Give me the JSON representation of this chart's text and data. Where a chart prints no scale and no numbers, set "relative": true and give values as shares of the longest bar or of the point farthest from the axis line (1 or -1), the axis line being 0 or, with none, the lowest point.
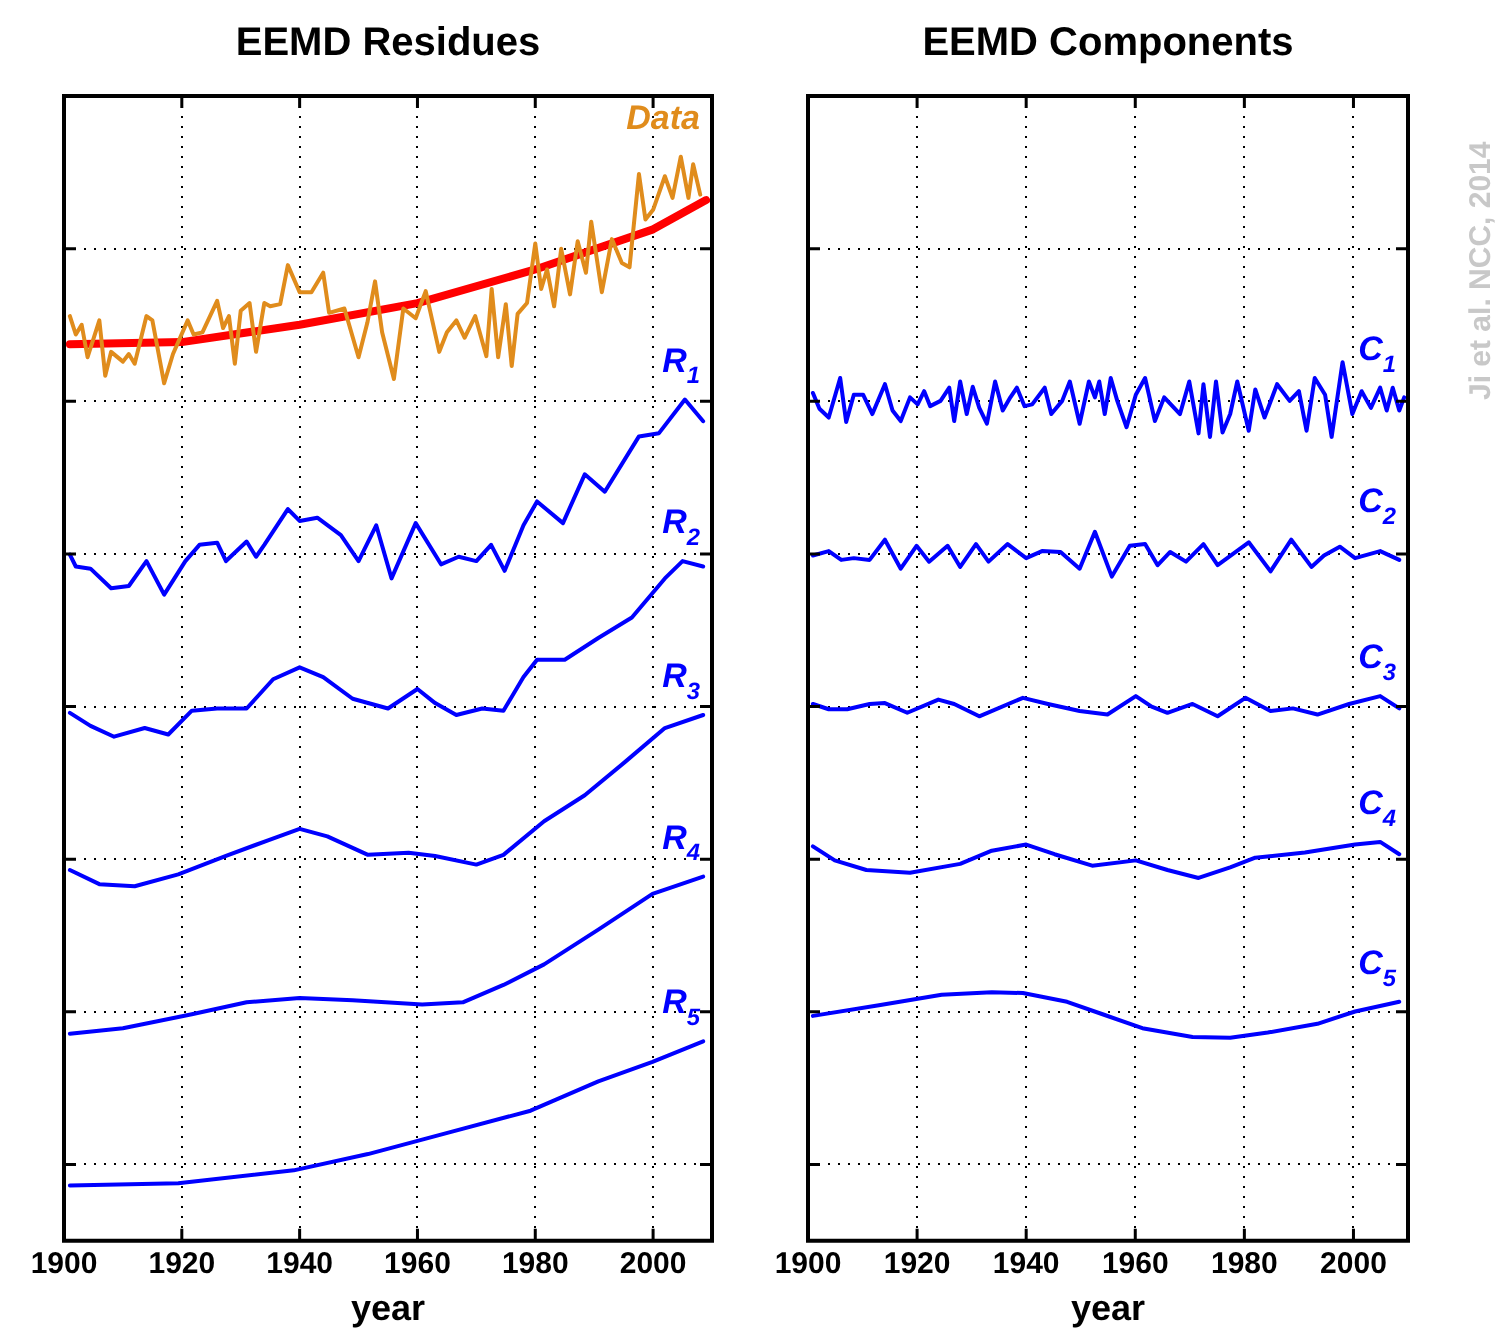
{
  "chart_data": [
    {
      "type": "line",
      "title": "EEMD Residues",
      "xlabel": "year",
      "relative": true,
      "xlim": [
        1900,
        2010
      ],
      "xticks": [
        1900,
        1920,
        1940,
        1960,
        1980,
        2000
      ],
      "grid": true,
      "legend": false,
      "marker": "none",
      "line_style": "solid",
      "series": [
        {
          "name": "Data",
          "color": "#e08c1c",
          "x": [
            1901,
            1902,
            1903,
            1904,
            1906,
            1907,
            1908,
            1910,
            1911,
            1912,
            1914,
            1915,
            1917,
            1918.5,
            1921,
            1922,
            1923.5,
            1926,
            1927,
            1928,
            1929,
            1930,
            1931.5,
            1932.6,
            1934,
            1935,
            1936.7,
            1938,
            1940,
            1942,
            1944,
            1945,
            1947.6,
            1950,
            1951.5,
            1952.8,
            1954,
            1956,
            1957.6,
            1959.7,
            1961.4,
            1963.7,
            1965,
            1966.6,
            1968,
            1969.8,
            1971.7,
            1972.6,
            1973.7,
            1975,
            1976,
            1977,
            1978.6,
            1980,
            1981,
            1982,
            1983.2,
            1984.4,
            1985.9,
            1987.2,
            1988.6,
            1989.5,
            1991.3,
            1993,
            1994.7,
            1996,
            1997.6,
            1998.7,
            2000,
            2002,
            2003.3,
            2004.7,
            2006,
            2006.8,
            2008
          ],
          "values": [
            0.853,
            0.836,
            0.845,
            0.815,
            0.849,
            0.798,
            0.82,
            0.811,
            0.818,
            0.809,
            0.853,
            0.849,
            0.791,
            0.818,
            0.849,
            0.836,
            0.838,
            0.867,
            0.842,
            0.853,
            0.809,
            0.858,
            0.865,
            0.82,
            0.865,
            0.862,
            0.864,
            0.9,
            0.875,
            0.875,
            0.893,
            0.856,
            0.86,
            0.815,
            0.847,
            0.885,
            0.838,
            0.795,
            0.86,
            0.851,
            0.876,
            0.82,
            0.838,
            0.849,
            0.833,
            0.853,
            0.816,
            0.878,
            0.815,
            0.864,
            0.807,
            0.855,
            0.865,
            0.92,
            0.878,
            0.896,
            0.862,
            0.915,
            0.873,
            0.922,
            0.893,
            0.94,
            0.875,
            0.924,
            0.902,
            0.898,
            0.984,
            0.942,
            0.951,
            0.982,
            0.962,
            1.0,
            0.962,
            0.993,
            0.965
          ]
        },
        {
          "color": "#ff0000",
          "x": [
            1901,
            1920,
            1940,
            1960,
            1980,
            2000,
            2009
          ],
          "values": [
            0.827,
            0.829,
            0.845,
            0.865,
            0.896,
            0.933,
            0.96
          ]
        },
        {
          "name": "R$_{1}$",
          "color": "#0000ff",
          "x": [
            1901,
            1902,
            1904.5,
            1908,
            1911,
            1914,
            1917,
            1920.6,
            1923,
            1926,
            1927.5,
            1931,
            1932.6,
            1934,
            1938,
            1940,
            1943,
            1947,
            1950,
            1953,
            1955.6,
            1959.7,
            1964,
            1967,
            1970,
            1972.5,
            1974.8,
            1978,
            1980.3,
            1984.7,
            1988.4,
            1991.8,
            1997.6,
            2001,
            2005.4,
            2008.5
          ],
          "values": [
            0.633,
            0.622,
            0.62,
            0.602,
            0.604,
            0.627,
            0.596,
            0.627,
            0.642,
            0.644,
            0.627,
            0.645,
            0.631,
            0.642,
            0.675,
            0.664,
            0.667,
            0.651,
            0.627,
            0.66,
            0.611,
            0.662,
            0.624,
            0.631,
            0.627,
            0.642,
            0.618,
            0.66,
            0.682,
            0.662,
            0.707,
            0.691,
            0.742,
            0.745,
            0.776,
            0.756
          ]
        },
        {
          "name": "R$_{2}$",
          "color": "#0000ff",
          "x": [
            1901,
            1904.5,
            1908.5,
            1913.7,
            1917.7,
            1921.7,
            1926,
            1931,
            1935.5,
            1940,
            1944,
            1949,
            1955,
            1960,
            1963,
            1966.6,
            1971,
            1974.6,
            1978,
            1980.3,
            1985,
            1990.7,
            1996.4,
            2002,
            2005,
            2008.5
          ],
          "values": [
            0.487,
            0.475,
            0.465,
            0.473,
            0.467,
            0.489,
            0.491,
            0.491,
            0.518,
            0.529,
            0.52,
            0.5,
            0.491,
            0.509,
            0.496,
            0.485,
            0.491,
            0.489,
            0.52,
            0.536,
            0.536,
            0.556,
            0.575,
            0.611,
            0.627,
            0.622
          ]
        },
        {
          "name": "R$_{3}$",
          "color": "#0000ff",
          "x": [
            1901,
            1906,
            1912,
            1919.4,
            1927.5,
            1934.4,
            1940,
            1944.7,
            1951.6,
            1958.5,
            1963,
            1970,
            1974.6,
            1981.5,
            1988.4,
            1995.3,
            2002,
            2008.5
          ],
          "values": [
            0.342,
            0.329,
            0.327,
            0.338,
            0.355,
            0.369,
            0.38,
            0.373,
            0.356,
            0.358,
            0.355,
            0.347,
            0.356,
            0.387,
            0.411,
            0.442,
            0.473,
            0.485
          ]
        },
        {
          "name": "R$_{4}$",
          "color": "#0000ff",
          "x": [
            1901,
            1910,
            1921.7,
            1931,
            1940,
            1949,
            1960.8,
            1967.7,
            1974.6,
            1981.5,
            1990.7,
            1999.9,
            2008.5
          ],
          "values": [
            0.191,
            0.196,
            0.209,
            0.22,
            0.224,
            0.222,
            0.218,
            0.22,
            0.236,
            0.255,
            0.287,
            0.32,
            0.336
          ]
        },
        {
          "name": "R$_{5}$",
          "color": "#0000ff",
          "x": [
            1901,
            1919.4,
            1939,
            1951.6,
            1965.4,
            1979.2,
            1990.7,
            1999.9,
            2008.5
          ],
          "values": [
            0.051,
            0.053,
            0.065,
            0.08,
            0.1,
            0.12,
            0.147,
            0.165,
            0.184
          ]
        }
      ]
    },
    {
      "type": "line",
      "title": "EEMD Components",
      "xlabel": "year",
      "relative": true,
      "xlim": [
        1900,
        2010
      ],
      "xticks": [
        1900,
        1920,
        1940,
        1960,
        1980,
        2000
      ],
      "grid": true,
      "legend": false,
      "marker": "none",
      "line_style": "solid",
      "annotations": [
        "Ji et al. NCC, 2014"
      ],
      "series": [
        {
          "name": "C$_{1}$",
          "color": "#0000ff",
          "x": [
            1900.9,
            1902.1,
            1903.8,
            1905.9,
            1907,
            1908.4,
            1910.1,
            1911.8,
            1914.1,
            1915.5,
            1917,
            1918.7,
            1920.1,
            1921.3,
            1922.4,
            1924.3,
            1925.9,
            1926.8,
            1927.9,
            1929.1,
            1930.2,
            1931.4,
            1932.8,
            1934.3,
            1935.7,
            1937.1,
            1938.3,
            1939.7,
            1941.1,
            1943.4,
            1944.6,
            1946.6,
            1948,
            1949.8,
            1951.5,
            1952.6,
            1953.4,
            1954.4,
            1955.5,
            1956.7,
            1958.4,
            1960.1,
            1961.8,
            1963.6,
            1965.3,
            1968.2,
            1969.9,
            1971.6,
            1972.5,
            1973.7,
            1974.8,
            1976,
            1977.4,
            1978.7,
            1980.8,
            1982,
            1983.7,
            1986,
            1988.3,
            1990,
            1991.4,
            1992.9,
            1994.8,
            1996,
            1998,
            1999.8,
            2001.5,
            2003.2,
            2004.9,
            2006.1,
            2007.2,
            2008.4,
            2009.3
          ],
          "values": [
            0.965,
            0.947,
            0.937,
            0.982,
            0.932,
            0.963,
            0.963,
            0.941,
            0.975,
            0.945,
            0.933,
            0.96,
            0.952,
            0.967,
            0.95,
            0.956,
            0.971,
            0.933,
            0.978,
            0.941,
            0.972,
            0.948,
            0.93,
            0.978,
            0.945,
            0.96,
            0.971,
            0.95,
            0.952,
            0.971,
            0.941,
            0.956,
            0.978,
            0.93,
            0.978,
            0.96,
            0.978,
            0.941,
            0.982,
            0.956,
            0.926,
            0.963,
            0.982,
            0.933,
            0.96,
            0.941,
            0.978,
            0.919,
            0.975,
            0.915,
            0.978,
            0.92,
            0.941,
            0.978,
            0.922,
            0.969,
            0.937,
            0.975,
            0.956,
            0.967,
            0.922,
            0.982,
            0.963,
            0.915,
            1.0,
            0.941,
            0.967,
            0.948,
            0.971,
            0.945,
            0.971,
            0.945,
            0.96
          ]
        },
        {
          "name": "C$_{2}$",
          "color": "#0000ff",
          "x": [
            1900.9,
            1903.8,
            1906.1,
            1908.4,
            1911.3,
            1914.1,
            1917,
            1919.9,
            1922.2,
            1925.6,
            1927.9,
            1930.8,
            1933.1,
            1936.6,
            1940,
            1942.9,
            1946.3,
            1949.8,
            1952.6,
            1955.7,
            1959,
            1961.8,
            1964.1,
            1966.4,
            1969.3,
            1972.5,
            1975.1,
            1980.8,
            1984.8,
            1988.6,
            1992.3,
            1994.6,
            1997.5,
            2000.3,
            2004.9,
            2008.4
          ],
          "values": [
            0.78,
            0.785,
            0.775,
            0.777,
            0.775,
            0.798,
            0.765,
            0.791,
            0.773,
            0.791,
            0.767,
            0.793,
            0.773,
            0.793,
            0.777,
            0.785,
            0.784,
            0.765,
            0.807,
            0.756,
            0.791,
            0.793,
            0.769,
            0.784,
            0.773,
            0.793,
            0.769,
            0.795,
            0.762,
            0.798,
            0.767,
            0.78,
            0.79,
            0.777,
            0.785,
            0.775
          ]
        },
        {
          "name": "C$_{3}$",
          "color": "#0000ff",
          "x": [
            1900.9,
            1903.8,
            1907.2,
            1911.3,
            1914.1,
            1918.2,
            1923.9,
            1926.8,
            1931.4,
            1939.4,
            1944,
            1949.8,
            1954.9,
            1960.1,
            1963,
            1965.9,
            1970.5,
            1975.1,
            1980.2,
            1984.8,
            1988.9,
            1993.4,
            1999.2,
            2004.9,
            2008.4
          ],
          "values": [
            0.611,
            0.605,
            0.605,
            0.611,
            0.612,
            0.601,
            0.616,
            0.611,
            0.597,
            0.618,
            0.611,
            0.603,
            0.599,
            0.62,
            0.608,
            0.601,
            0.611,
            0.597,
            0.618,
            0.603,
            0.606,
            0.599,
            0.611,
            0.62,
            0.606
          ]
        },
        {
          "name": "C$_{4}$",
          "color": "#0000ff",
          "x": [
            1900.9,
            1904.9,
            1910.7,
            1918.7,
            1927.9,
            1933.7,
            1940,
            1945.2,
            1952.1,
            1960.1,
            1965.9,
            1971.6,
            1977.4,
            1982,
            1991.1,
            2000.3,
            2004.9,
            2008.4
          ],
          "values": [
            0.449,
            0.433,
            0.422,
            0.419,
            0.429,
            0.444,
            0.451,
            0.44,
            0.427,
            0.433,
            0.422,
            0.413,
            0.425,
            0.436,
            0.442,
            0.451,
            0.454,
            0.44
          ]
        },
        {
          "name": "C$_{5}$",
          "color": "#0000ff",
          "x": [
            1900.9,
            1913,
            1924.5,
            1933.7,
            1939.4,
            1947.5,
            1954.4,
            1961.3,
            1970.5,
            1977.4,
            1984.3,
            1993.4,
            2000.3,
            2008.4
          ],
          "values": [
            0.256,
            0.268,
            0.28,
            0.283,
            0.282,
            0.272,
            0.257,
            0.242,
            0.232,
            0.231,
            0.237,
            0.247,
            0.261,
            0.272
          ]
        }
      ]
    }
  ]
}
